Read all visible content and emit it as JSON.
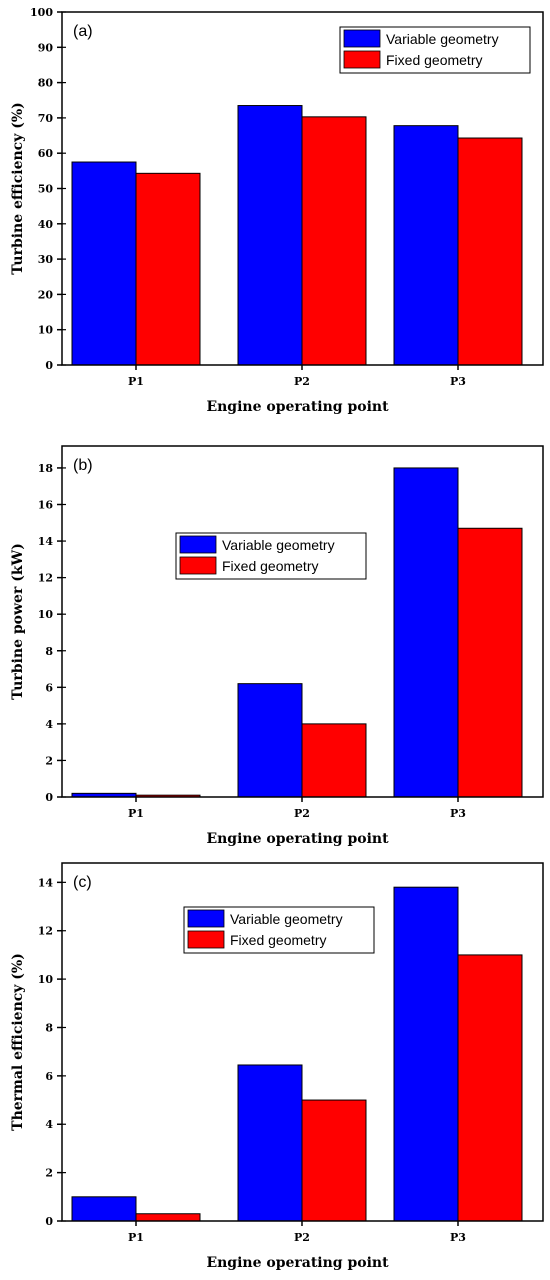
{
  "colors": {
    "variable": "#0000ff",
    "fixed": "#ff0000",
    "axis": "#000000"
  },
  "chart_data": [
    {
      "type": "bar",
      "panel_label": "(a)",
      "categories": [
        "P1",
        "P2",
        "P3"
      ],
      "series": [
        {
          "name": "Variable geometry",
          "values": [
            57.5,
            73.5,
            67.8
          ]
        },
        {
          "name": "Fixed geometry",
          "values": [
            54.3,
            70.3,
            64.3
          ]
        }
      ],
      "xlabel": "Engine operating point",
      "ylabel": "Turbine efficiency (%)",
      "ylim": [
        0,
        100
      ],
      "yticks": [
        0,
        10,
        20,
        30,
        40,
        50,
        60,
        70,
        80,
        90,
        100
      ],
      "grid": false,
      "legend_position": "top-right"
    },
    {
      "type": "bar",
      "panel_label": "(b)",
      "categories": [
        "P1",
        "P2",
        "P3"
      ],
      "series": [
        {
          "name": "Variable geometry",
          "values": [
            0.2,
            6.2,
            18.0
          ]
        },
        {
          "name": "Fixed geometry",
          "values": [
            0.1,
            4.0,
            14.7
          ]
        }
      ],
      "xlabel": "Engine operating point",
      "ylabel": "Turbine power (kW)",
      "ylim": [
        0,
        19.2
      ],
      "yticks": [
        0,
        2,
        4,
        6,
        8,
        10,
        12,
        14,
        16,
        18
      ],
      "grid": false,
      "legend_position": "center-left"
    },
    {
      "type": "bar",
      "panel_label": "(c)",
      "categories": [
        "P1",
        "P2",
        "P3"
      ],
      "series": [
        {
          "name": "Variable geometry",
          "values": [
            1.0,
            6.45,
            13.8
          ]
        },
        {
          "name": "Fixed geometry",
          "values": [
            0.3,
            5.0,
            11.0
          ]
        }
      ],
      "xlabel": "Engine operating point",
      "ylabel": "Thermal efficiency (%)",
      "ylim": [
        0,
        14.8
      ],
      "yticks": [
        0,
        2,
        4,
        6,
        8,
        10,
        12,
        14
      ],
      "grid": false,
      "legend_position": "top-center"
    }
  ]
}
